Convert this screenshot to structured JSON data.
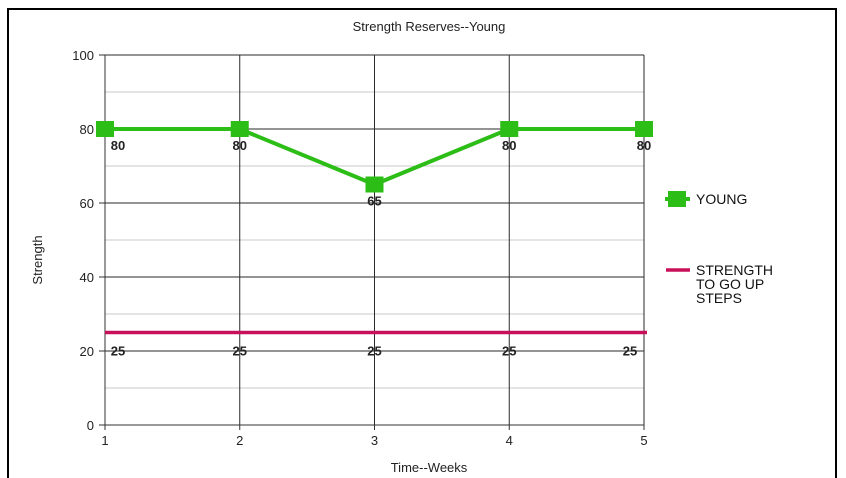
{
  "chart_data": {
    "type": "line",
    "title": "Strength Reserves--Young",
    "xlabel": "Time--Weeks",
    "ylabel": "Strength",
    "x": [
      1,
      2,
      3,
      4,
      5
    ],
    "xlim": [
      1,
      5
    ],
    "ylim": [
      0,
      100
    ],
    "yticks": [
      0,
      20,
      40,
      60,
      80,
      100
    ],
    "grid": true,
    "legend_position": "right",
    "series": [
      {
        "name": "YOUNG",
        "values": [
          80,
          80,
          65,
          80,
          80
        ],
        "color": "#2dbd17",
        "marker": "square",
        "data_labels": [
          "80",
          "80",
          "65",
          "80",
          "80"
        ]
      },
      {
        "name": "STRENGTH TO GO UP STEPS",
        "values": [
          25,
          25,
          25,
          25,
          25
        ],
        "color": "#c8105a",
        "marker": "none",
        "data_labels": [
          "25",
          "25",
          "25",
          "25",
          "25"
        ]
      }
    ],
    "legend_lines": [
      [
        "YOUNG"
      ],
      [
        "STRENGTH",
        "TO GO UP",
        "STEPS"
      ]
    ]
  }
}
